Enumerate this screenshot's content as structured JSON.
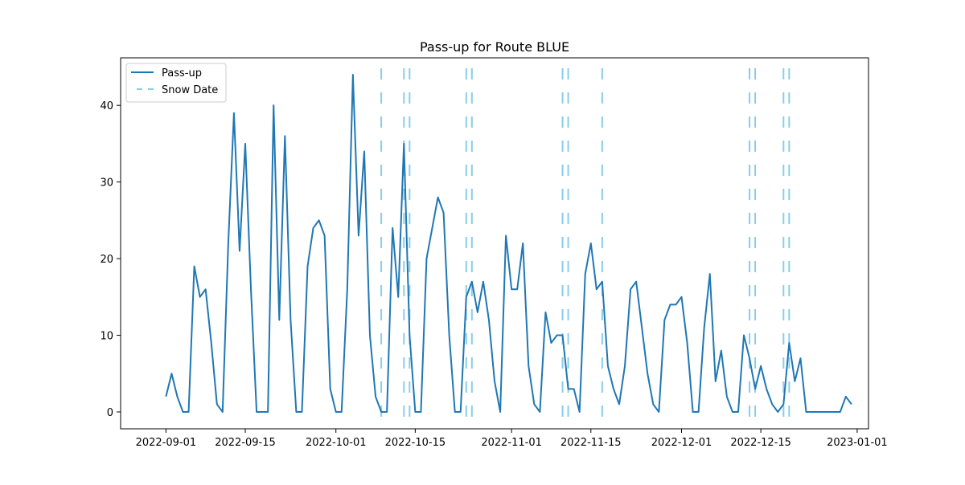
{
  "chart_data": {
    "type": "line",
    "title": "Pass-up for Route BLUE",
    "xlabel": "",
    "ylabel": "",
    "x_axis": {
      "type": "date",
      "range": [
        "2022-08-24",
        "2023-01-03"
      ],
      "ticks": [
        "2022-09-01",
        "2022-09-15",
        "2022-10-01",
        "2022-10-15",
        "2022-11-01",
        "2022-11-15",
        "2022-12-01",
        "2022-12-15",
        "2023-01-01"
      ]
    },
    "y_axis": {
      "range": [
        -2.2,
        46.2
      ],
      "ticks": [
        0,
        10,
        20,
        30,
        40
      ]
    },
    "grid": false,
    "legend": {
      "position": "upper-left",
      "entries": [
        "Pass-up",
        "Snow Date"
      ]
    },
    "series": [
      {
        "name": "Pass-up",
        "color": "#1f77b4",
        "style": "solid",
        "points": [
          [
            "2022-09-01",
            2
          ],
          [
            "2022-09-02",
            5
          ],
          [
            "2022-09-03",
            2
          ],
          [
            "2022-09-04",
            0
          ],
          [
            "2022-09-05",
            0
          ],
          [
            "2022-09-06",
            19
          ],
          [
            "2022-09-07",
            15
          ],
          [
            "2022-09-08",
            16
          ],
          [
            "2022-09-09",
            9
          ],
          [
            "2022-09-10",
            1
          ],
          [
            "2022-09-11",
            0
          ],
          [
            "2022-09-12",
            22
          ],
          [
            "2022-09-13",
            39
          ],
          [
            "2022-09-14",
            21
          ],
          [
            "2022-09-15",
            35
          ],
          [
            "2022-09-16",
            16
          ],
          [
            "2022-09-17",
            0
          ],
          [
            "2022-09-18",
            0
          ],
          [
            "2022-09-19",
            0
          ],
          [
            "2022-09-20",
            40
          ],
          [
            "2022-09-21",
            12
          ],
          [
            "2022-09-22",
            36
          ],
          [
            "2022-09-23",
            12
          ],
          [
            "2022-09-24",
            0
          ],
          [
            "2022-09-25",
            0
          ],
          [
            "2022-09-26",
            19
          ],
          [
            "2022-09-27",
            24
          ],
          [
            "2022-09-28",
            25
          ],
          [
            "2022-09-29",
            23
          ],
          [
            "2022-09-30",
            3
          ],
          [
            "2022-10-01",
            0
          ],
          [
            "2022-10-02",
            0
          ],
          [
            "2022-10-03",
            16
          ],
          [
            "2022-10-04",
            44
          ],
          [
            "2022-10-05",
            23
          ],
          [
            "2022-10-06",
            34
          ],
          [
            "2022-10-07",
            10
          ],
          [
            "2022-10-08",
            2
          ],
          [
            "2022-10-09",
            0
          ],
          [
            "2022-10-10",
            0
          ],
          [
            "2022-10-11",
            24
          ],
          [
            "2022-10-12",
            15
          ],
          [
            "2022-10-13",
            35
          ],
          [
            "2022-10-14",
            10
          ],
          [
            "2022-10-15",
            0
          ],
          [
            "2022-10-16",
            0
          ],
          [
            "2022-10-17",
            20
          ],
          [
            "2022-10-18",
            24
          ],
          [
            "2022-10-19",
            28
          ],
          [
            "2022-10-20",
            26
          ],
          [
            "2022-10-21",
            10
          ],
          [
            "2022-10-22",
            0
          ],
          [
            "2022-10-23",
            0
          ],
          [
            "2022-10-24",
            15
          ],
          [
            "2022-10-25",
            17
          ],
          [
            "2022-10-26",
            13
          ],
          [
            "2022-10-27",
            17
          ],
          [
            "2022-10-28",
            12
          ],
          [
            "2022-10-29",
            4
          ],
          [
            "2022-10-30",
            0
          ],
          [
            "2022-10-31",
            23
          ],
          [
            "2022-11-01",
            16
          ],
          [
            "2022-11-02",
            16
          ],
          [
            "2022-11-03",
            22
          ],
          [
            "2022-11-04",
            6
          ],
          [
            "2022-11-05",
            1
          ],
          [
            "2022-11-06",
            0
          ],
          [
            "2022-11-07",
            13
          ],
          [
            "2022-11-08",
            9
          ],
          [
            "2022-11-09",
            10
          ],
          [
            "2022-11-10",
            10
          ],
          [
            "2022-11-11",
            3
          ],
          [
            "2022-11-12",
            3
          ],
          [
            "2022-11-13",
            0
          ],
          [
            "2022-11-14",
            18
          ],
          [
            "2022-11-15",
            22
          ],
          [
            "2022-11-16",
            16
          ],
          [
            "2022-11-17",
            17
          ],
          [
            "2022-11-18",
            6
          ],
          [
            "2022-11-19",
            3
          ],
          [
            "2022-11-20",
            1
          ],
          [
            "2022-11-21",
            6
          ],
          [
            "2022-11-22",
            16
          ],
          [
            "2022-11-23",
            17
          ],
          [
            "2022-11-24",
            11
          ],
          [
            "2022-11-25",
            5
          ],
          [
            "2022-11-26",
            1
          ],
          [
            "2022-11-27",
            0
          ],
          [
            "2022-11-28",
            12
          ],
          [
            "2022-11-29",
            14
          ],
          [
            "2022-11-30",
            14
          ],
          [
            "2022-12-01",
            15
          ],
          [
            "2022-12-02",
            9
          ],
          [
            "2022-12-03",
            0
          ],
          [
            "2022-12-04",
            0
          ],
          [
            "2022-12-05",
            11
          ],
          [
            "2022-12-06",
            18
          ],
          [
            "2022-12-07",
            4
          ],
          [
            "2022-12-08",
            8
          ],
          [
            "2022-12-09",
            2
          ],
          [
            "2022-12-10",
            0
          ],
          [
            "2022-12-11",
            0
          ],
          [
            "2022-12-12",
            10
          ],
          [
            "2022-12-13",
            7
          ],
          [
            "2022-12-14",
            3
          ],
          [
            "2022-12-15",
            6
          ],
          [
            "2022-12-16",
            3
          ],
          [
            "2022-12-17",
            1
          ],
          [
            "2022-12-18",
            0
          ],
          [
            "2022-12-19",
            1
          ],
          [
            "2022-12-20",
            9
          ],
          [
            "2022-12-21",
            4
          ],
          [
            "2022-12-22",
            7
          ],
          [
            "2022-12-23",
            0
          ],
          [
            "2022-12-24",
            0
          ],
          [
            "2022-12-25",
            0
          ],
          [
            "2022-12-26",
            0
          ],
          [
            "2022-12-27",
            0
          ],
          [
            "2022-12-28",
            0
          ],
          [
            "2022-12-29",
            0
          ],
          [
            "2022-12-30",
            2
          ],
          [
            "2022-12-31",
            1
          ]
        ]
      },
      {
        "name": "Snow Date",
        "color": "#87ceeb",
        "style": "dashed-vertical",
        "dates": [
          "2022-10-09",
          "2022-10-13",
          "2022-10-14",
          "2022-10-24",
          "2022-10-25",
          "2022-11-10",
          "2022-11-11",
          "2022-11-17",
          "2022-12-13",
          "2022-12-14",
          "2022-12-19",
          "2022-12-20"
        ]
      }
    ]
  }
}
